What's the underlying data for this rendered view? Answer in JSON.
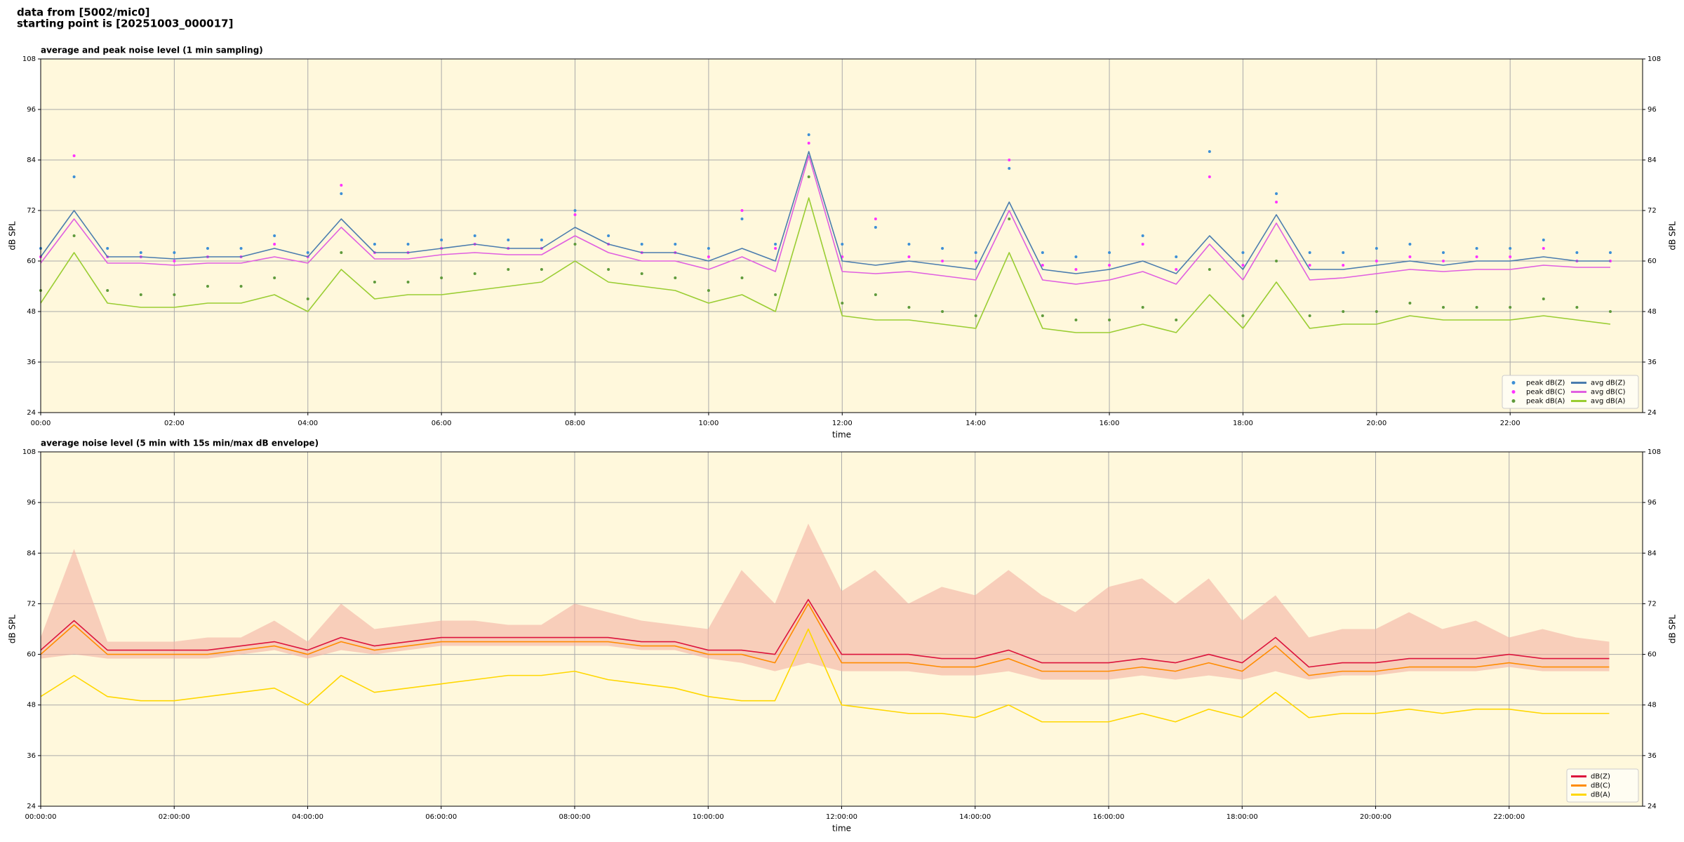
{
  "header": {
    "line1": "data from [5002/mic0]",
    "line2": "starting point is [20251003_000017]"
  },
  "chart_data": [
    {
      "type": "line",
      "title": "average and peak noise level (1 min sampling)",
      "x_label": "time",
      "y_label": "dB SPL",
      "y2_label": "dB SPL",
      "background": "#fff8dc",
      "grid": true,
      "legend": "lower right",
      "legend_columns": 2,
      "xlim": [
        "00:00",
        "23:59"
      ],
      "xticks": [
        "00:00",
        "02:00",
        "04:00",
        "06:00",
        "08:00",
        "10:00",
        "12:00",
        "14:00",
        "16:00",
        "18:00",
        "20:00",
        "22:00"
      ],
      "ylim": [
        24,
        108
      ],
      "yticks": [
        24,
        36,
        48,
        60,
        72,
        84,
        96,
        108
      ],
      "y2lim": [
        24,
        108
      ],
      "y2ticks": [
        24,
        36,
        48,
        60,
        72,
        84,
        96,
        108
      ],
      "x": [
        "00:00",
        "00:30",
        "01:00",
        "01:30",
        "02:00",
        "02:30",
        "03:00",
        "03:30",
        "04:00",
        "04:30",
        "05:00",
        "05:30",
        "06:00",
        "06:30",
        "07:00",
        "07:30",
        "08:00",
        "08:30",
        "09:00",
        "09:30",
        "10:00",
        "10:30",
        "11:00",
        "11:30",
        "12:00",
        "12:30",
        "13:00",
        "13:30",
        "14:00",
        "14:30",
        "15:00",
        "15:30",
        "16:00",
        "16:30",
        "17:00",
        "17:30",
        "18:00",
        "18:30",
        "19:00",
        "19:30",
        "20:00",
        "20:30",
        "21:00",
        "21:30",
        "22:00",
        "22:30",
        "23:00",
        "23:30"
      ],
      "series": [
        {
          "name": "peak dB(Z)",
          "style": "dots",
          "color": "#3d8fd6",
          "values": [
            63,
            80,
            63,
            62,
            62,
            63,
            63,
            66,
            62,
            76,
            64,
            64,
            65,
            66,
            65,
            65,
            72,
            66,
            64,
            64,
            63,
            70,
            64,
            90,
            64,
            68,
            64,
            63,
            62,
            82,
            62,
            61,
            62,
            66,
            61,
            86,
            62,
            76,
            62,
            62,
            63,
            64,
            62,
            63,
            63,
            65,
            62,
            62
          ]
        },
        {
          "name": "peak dB(C)",
          "style": "dots",
          "color": "#ff33ff",
          "values": [
            61,
            85,
            61,
            61,
            60,
            61,
            61,
            64,
            61,
            78,
            62,
            62,
            63,
            64,
            63,
            63,
            71,
            64,
            62,
            62,
            61,
            72,
            63,
            88,
            61,
            70,
            61,
            60,
            60,
            84,
            59,
            58,
            59,
            64,
            58,
            80,
            59,
            74,
            59,
            59,
            60,
            61,
            60,
            61,
            61,
            63,
            60,
            60
          ]
        },
        {
          "name": "peak dB(A)",
          "style": "dots",
          "color": "#5f9a3c",
          "values": [
            53,
            66,
            53,
            52,
            52,
            54,
            54,
            56,
            51,
            62,
            55,
            55,
            56,
            57,
            58,
            58,
            64,
            58,
            57,
            56,
            53,
            56,
            52,
            80,
            50,
            52,
            49,
            48,
            47,
            70,
            47,
            46,
            46,
            49,
            46,
            58,
            47,
            60,
            47,
            48,
            48,
            50,
            49,
            49,
            49,
            51,
            49,
            48
          ]
        },
        {
          "name": "avg dB(Z)",
          "style": "line",
          "color": "#4a7cae",
          "values": [
            61,
            72,
            61,
            61,
            60.5,
            61,
            61,
            63,
            61,
            70,
            62,
            62,
            63,
            64,
            63,
            63,
            68,
            64,
            62,
            62,
            60,
            63,
            60,
            86,
            60,
            59,
            60,
            59,
            58,
            74,
            58,
            57,
            58,
            60,
            57,
            66,
            58,
            71,
            58,
            58,
            59,
            60,
            59,
            60,
            60,
            61,
            60,
            60
          ]
        },
        {
          "name": "avg dB(C)",
          "style": "line",
          "color": "#e05fe0",
          "values": [
            59.5,
            70,
            59.5,
            59.5,
            59,
            59.5,
            59.5,
            61,
            59.5,
            68,
            60.5,
            60.5,
            61.5,
            62,
            61.5,
            61.5,
            66,
            62,
            60,
            60,
            58,
            61,
            57.5,
            85,
            57.5,
            57,
            57.5,
            56.5,
            55.5,
            72,
            55.5,
            54.5,
            55.5,
            57.5,
            54.5,
            64,
            55.5,
            69,
            55.5,
            56,
            57,
            58,
            57.5,
            58,
            58,
            59,
            58.5,
            58.5
          ]
        },
        {
          "name": "avg dB(A)",
          "style": "line",
          "color": "#9acd32",
          "values": [
            50,
            62,
            50,
            49,
            49,
            50,
            50,
            52,
            48,
            58,
            51,
            52,
            52,
            53,
            54,
            55,
            60,
            55,
            54,
            53,
            50,
            52,
            48,
            75,
            47,
            46,
            46,
            45,
            44,
            62,
            44,
            43,
            43,
            45,
            43,
            52,
            44,
            55,
            44,
            45,
            45,
            47,
            46,
            46,
            46,
            47,
            46,
            45
          ]
        }
      ]
    },
    {
      "type": "line",
      "title": "average noise level (5 min with 15s min/max dB envelope)",
      "x_label": "time",
      "y_label": "dB SPL",
      "y2_label": "dB SPL",
      "background": "#fff8dc",
      "grid": true,
      "legend": "lower right",
      "legend_columns": 1,
      "xlim": [
        "00:00:00",
        "23:59:59"
      ],
      "xticks": [
        "00:00:00",
        "02:00:00",
        "04:00:00",
        "06:00:00",
        "08:00:00",
        "10:00:00",
        "12:00:00",
        "14:00:00",
        "16:00:00",
        "18:00:00",
        "20:00:00",
        "22:00:00"
      ],
      "ylim": [
        24,
        108
      ],
      "yticks": [
        24,
        36,
        48,
        60,
        72,
        84,
        96,
        108
      ],
      "y2lim": [
        24,
        108
      ],
      "y2ticks": [
        24,
        36,
        48,
        60,
        72,
        84,
        96,
        108
      ],
      "x": [
        "00:00:00",
        "00:30:00",
        "01:00:00",
        "01:30:00",
        "02:00:00",
        "02:30:00",
        "03:00:00",
        "03:30:00",
        "04:00:00",
        "04:30:00",
        "05:00:00",
        "05:30:00",
        "06:00:00",
        "06:30:00",
        "07:00:00",
        "07:30:00",
        "08:00:00",
        "08:30:00",
        "09:00:00",
        "09:30:00",
        "10:00:00",
        "10:30:00",
        "11:00:00",
        "11:30:00",
        "12:00:00",
        "12:30:00",
        "13:00:00",
        "13:30:00",
        "14:00:00",
        "14:30:00",
        "15:00:00",
        "15:30:00",
        "16:00:00",
        "16:30:00",
        "17:00:00",
        "17:30:00",
        "18:00:00",
        "18:30:00",
        "19:00:00",
        "19:30:00",
        "20:00:00",
        "20:30:00",
        "21:00:00",
        "21:30:00",
        "22:00:00",
        "22:30:00",
        "23:00:00",
        "23:30:00"
      ],
      "envelope": {
        "color": "#f4b3a3",
        "low": [
          59,
          60,
          59,
          59,
          59,
          59,
          60,
          61,
          59,
          61,
          60,
          61,
          62,
          62,
          62,
          62,
          62,
          62,
          61,
          61,
          59,
          58,
          56,
          58,
          56,
          56,
          56,
          55,
          55,
          56,
          54,
          54,
          54,
          55,
          54,
          55,
          54,
          56,
          54,
          55,
          55,
          56,
          56,
          56,
          57,
          56,
          56,
          56
        ],
        "high": [
          64,
          85,
          63,
          63,
          63,
          64,
          64,
          68,
          63,
          72,
          66,
          67,
          68,
          68,
          67,
          67,
          72,
          70,
          68,
          67,
          66,
          80,
          72,
          91,
          75,
          80,
          72,
          76,
          74,
          80,
          74,
          70,
          76,
          78,
          72,
          78,
          68,
          74,
          64,
          66,
          66,
          70,
          66,
          68,
          64,
          66,
          64,
          63
        ]
      },
      "series": [
        {
          "name": "dB(Z)",
          "style": "line",
          "color": "#dc143c",
          "values": [
            61,
            68,
            61,
            61,
            61,
            61,
            62,
            63,
            61,
            64,
            62,
            63,
            64,
            64,
            64,
            64,
            64,
            64,
            63,
            63,
            61,
            61,
            60,
            73,
            60,
            60,
            60,
            59,
            59,
            61,
            58,
            58,
            58,
            59,
            58,
            60,
            58,
            64,
            57,
            58,
            58,
            59,
            59,
            59,
            60,
            59,
            59,
            59
          ]
        },
        {
          "name": "dB(C)",
          "style": "line",
          "color": "#ff8c00",
          "values": [
            60,
            67,
            60,
            60,
            60,
            60,
            61,
            62,
            60,
            63,
            61,
            62,
            63,
            63,
            63,
            63,
            63,
            63,
            62,
            62,
            60,
            60,
            58,
            72,
            58,
            58,
            58,
            57,
            57,
            59,
            56,
            56,
            56,
            57,
            56,
            58,
            56,
            62,
            55,
            56,
            56,
            57,
            57,
            57,
            58,
            57,
            57,
            57
          ]
        },
        {
          "name": "dB(A)",
          "style": "line",
          "color": "#ffd700",
          "values": [
            50,
            55,
            50,
            49,
            49,
            50,
            51,
            52,
            48,
            55,
            51,
            52,
            53,
            54,
            55,
            55,
            56,
            54,
            53,
            52,
            50,
            49,
            49,
            66,
            48,
            47,
            46,
            46,
            45,
            48,
            44,
            44,
            44,
            46,
            44,
            47,
            45,
            51,
            45,
            46,
            46,
            47,
            46,
            47,
            47,
            46,
            46,
            46
          ]
        }
      ]
    }
  ]
}
